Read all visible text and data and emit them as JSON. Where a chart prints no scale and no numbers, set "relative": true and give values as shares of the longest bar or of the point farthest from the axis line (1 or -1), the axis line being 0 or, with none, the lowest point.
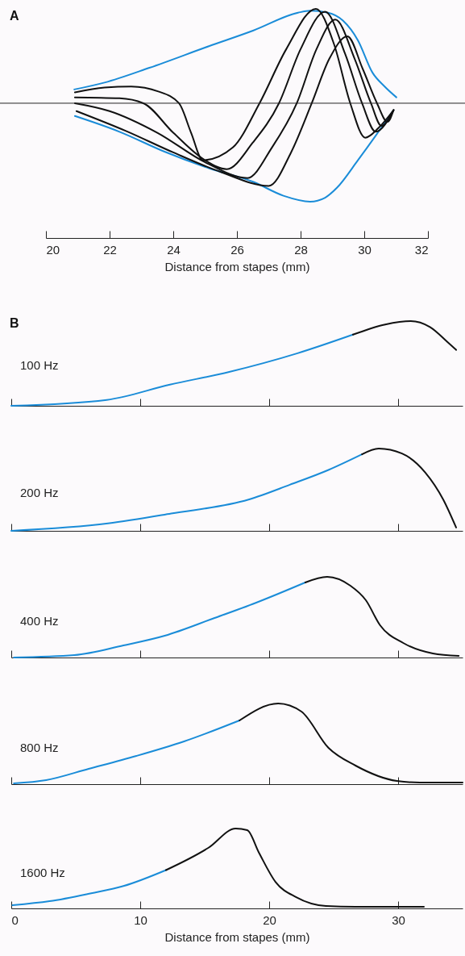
{
  "chart_data": [
    {
      "type": "line",
      "title": "A",
      "xlabel": "Distance from stapes (mm)",
      "relative": true,
      "xlim": [
        20,
        32
      ],
      "xticks": [
        20,
        22,
        24,
        26,
        28,
        30,
        32
      ],
      "series": [
        {
          "color": "#1a8cd8",
          "x": [
            20.89,
            21.84,
            23.25,
            25.12,
            26.52,
            27.92,
            28.3,
            28.86,
            29.33,
            29.8,
            30.26,
            30.64,
            31.01
          ],
          "values": [
            0.14,
            0.21,
            0.36,
            0.58,
            0.74,
            0.92,
            0.94,
            0.92,
            0.84,
            0.64,
            0.31,
            0.17,
            0.06
          ]
        },
        {
          "color": "#1a8cd8",
          "x": [
            20.91,
            22.31,
            23.71,
            25.12,
            26.52,
            27.46,
            28.3,
            28.77,
            29.14,
            29.8,
            30.36,
            30.92
          ],
          "values": [
            -0.13,
            -0.29,
            -0.49,
            -0.66,
            -0.8,
            -0.94,
            -1,
            -0.96,
            -0.86,
            -0.58,
            -0.33,
            -0.07
          ]
        },
        {
          "color": "#111111",
          "x": [
            20.91,
            21.84,
            22.68,
            23.53,
            24.18,
            24.56,
            24.93,
            25.87,
            26.71,
            27.55,
            28.48,
            29.05,
            29.56,
            30.03,
            30.45,
            30.92
          ],
          "values": [
            0.11,
            0.16,
            0.17,
            0.12,
            0,
            -0.3,
            -0.58,
            -0.45,
            0,
            0.55,
            0.96,
            0.6,
            0,
            -0.35,
            -0.25,
            -0.07
          ]
        },
        {
          "color": "#111111",
          "x": [
            20.91,
            22.31,
            23.06,
            24.0,
            25.0,
            25.68,
            26.5,
            27.32,
            28.0,
            28.77,
            29.4,
            29.93,
            30.36,
            30.92
          ],
          "values": [
            0.06,
            0.05,
            0,
            -0.3,
            -0.58,
            -0.67,
            -0.4,
            0,
            0.55,
            0.93,
            0.5,
            0,
            -0.29,
            -0.07
          ]
        },
        {
          "color": "#111111",
          "x": [
            20.91,
            22.0,
            23.5,
            25.0,
            26.33,
            27.1,
            27.88,
            28.5,
            29.09,
            29.7,
            30.21,
            30.54,
            30.92
          ],
          "values": [
            0,
            -0.08,
            -0.3,
            -0.6,
            -0.76,
            -0.45,
            0,
            0.55,
            0.85,
            0.45,
            0,
            -0.23,
            -0.07
          ]
        },
        {
          "color": "#111111",
          "x": [
            20.96,
            22.5,
            24.0,
            25.5,
            27.0,
            27.7,
            28.35,
            28.9,
            29.47,
            29.95,
            30.4,
            30.73,
            30.92
          ],
          "values": [
            -0.08,
            -0.28,
            -0.5,
            -0.7,
            -0.84,
            -0.5,
            0,
            0.45,
            0.68,
            0.35,
            0,
            -0.19,
            -0.07
          ]
        }
      ]
    },
    {
      "type": "line",
      "title": "B",
      "annotations": [
        "100 Hz"
      ],
      "relative": true,
      "xlim": [
        0,
        35
      ],
      "xticks": [
        0,
        10,
        20,
        30
      ],
      "tick_labels": false,
      "series": [
        {
          "color": "#1a8cd8",
          "x": [
            0,
            7.4,
            12.3,
            16.9,
            22.2,
            26.5
          ],
          "values": [
            0,
            0.07,
            0.25,
            0.4,
            0.62,
            0.84
          ]
        },
        {
          "color": "#111111",
          "x": [
            26.5,
            29.0,
            30.98,
            32.47,
            33.85,
            34.5
          ],
          "values": [
            0.84,
            0.96,
            1,
            0.93,
            0.75,
            0.66
          ]
        }
      ]
    },
    {
      "type": "line",
      "annotations": [
        "200 Hz"
      ],
      "relative": true,
      "xlim": [
        0,
        35
      ],
      "xticks": [
        0,
        10,
        20,
        30
      ],
      "tick_labels": false,
      "series": [
        {
          "color": "#1a8cd8",
          "x": [
            0,
            7.5,
            12.4,
            18.4,
            21.6,
            24.6,
            27.2
          ],
          "values": [
            0,
            0.09,
            0.21,
            0.38,
            0.56,
            0.74,
            0.93
          ]
        },
        {
          "color": "#111111",
          "x": [
            27.2,
            28.5,
            30.3,
            32.1,
            33.5,
            34.5
          ],
          "values": [
            0.93,
            1,
            0.94,
            0.71,
            0.38,
            0.04
          ]
        }
      ]
    },
    {
      "type": "line",
      "annotations": [
        "400 Hz"
      ],
      "relative": true,
      "xlim": [
        0,
        35
      ],
      "xticks": [
        0,
        10,
        20,
        30
      ],
      "tick_labels": false,
      "series": [
        {
          "color": "#1a8cd8",
          "x": [
            0.2,
            4.9,
            8.7,
            11.9,
            15.6,
            19.0,
            22.8
          ],
          "values": [
            0,
            0.03,
            0.15,
            0.27,
            0.48,
            0.68,
            0.93
          ]
        },
        {
          "color": "#111111",
          "x": [
            22.8,
            24.5,
            26.3,
            27.5,
            28.6,
            30.4,
            32.7,
            34.7
          ],
          "values": [
            0.93,
            1,
            0.89,
            0.71,
            0.4,
            0.18,
            0.05,
            0.02
          ]
        }
      ]
    },
    {
      "type": "line",
      "annotations": [
        "800 Hz"
      ],
      "relative": true,
      "xlim": [
        0,
        35
      ],
      "xticks": [
        0,
        10,
        20,
        30
      ],
      "tick_labels": false,
      "series": [
        {
          "color": "#1a8cd8",
          "x": [
            0.2,
            2.7,
            6.0,
            9.7,
            13.4,
            17.7
          ],
          "values": [
            0.01,
            0.05,
            0.19,
            0.35,
            0.53,
            0.79
          ]
        },
        {
          "color": "#111111",
          "x": [
            17.7,
            20.7,
            22.5,
            24.6,
            26.7,
            29.9,
            31.7,
            35.0
          ],
          "values": [
            0.79,
            1,
            0.9,
            0.45,
            0.23,
            0.04,
            0.02,
            0.02
          ]
        }
      ]
    },
    {
      "type": "line",
      "annotations": [
        "1600 Hz"
      ],
      "xlabel": "Distance from stapes (mm)",
      "relative": true,
      "xlim": [
        0,
        35
      ],
      "xticks": [
        0,
        10,
        20,
        30
      ],
      "series": [
        {
          "color": "#1a8cd8",
          "x": [
            0.1,
            2.97,
            6.2,
            8.7,
            12.0
          ],
          "values": [
            0.04,
            0.09,
            0.19,
            0.28,
            0.48
          ]
        },
        {
          "color": "#111111",
          "x": [
            12.0,
            15.3,
            17.4,
            18.3,
            19.2,
            20.5,
            22.1,
            24.4,
            26.7,
            32.0
          ],
          "values": [
            0.48,
            0.76,
            1,
            0.98,
            0.7,
            0.33,
            0.14,
            0.03,
            0.02,
            0.02
          ]
        }
      ]
    }
  ]
}
